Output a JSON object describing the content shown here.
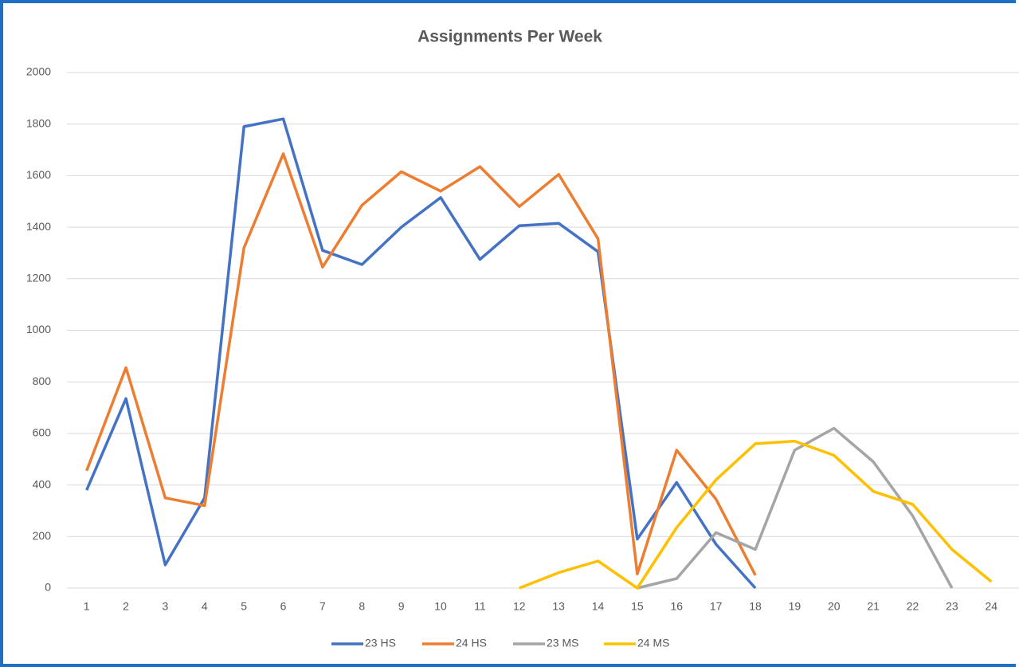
{
  "chart_data": {
    "type": "line",
    "title": "Assignments Per Week",
    "categories": [
      "1",
      "2",
      "3",
      "4",
      "5",
      "6",
      "7",
      "8",
      "9",
      "10",
      "11",
      "12",
      "13",
      "14",
      "15",
      "16",
      "17",
      "18",
      "19",
      "20",
      "21",
      "22",
      "23",
      "24"
    ],
    "series": [
      {
        "name": "23 HS",
        "color": "#4472c4",
        "values": [
          380,
          735,
          90,
          350,
          1790,
          1820,
          1310,
          1255,
          1400,
          1515,
          1275,
          1406,
          1415,
          1305,
          190,
          410,
          170,
          0,
          null,
          null,
          null,
          null,
          null,
          null
        ]
      },
      {
        "name": "24 HS",
        "color": "#ed7d31",
        "values": [
          455,
          855,
          350,
          320,
          1320,
          1685,
          1245,
          1485,
          1615,
          1540,
          1635,
          1480,
          1605,
          1355,
          55,
          535,
          345,
          50,
          null,
          null,
          null,
          null,
          null,
          null
        ]
      },
      {
        "name": "23 MS",
        "color": "#a5a5a5",
        "values": [
          null,
          null,
          null,
          null,
          null,
          null,
          null,
          null,
          null,
          null,
          null,
          null,
          null,
          null,
          0,
          37,
          215,
          150,
          535,
          620,
          490,
          280,
          0,
          null
        ]
      },
      {
        "name": "24 MS",
        "color": "#ffc000",
        "values": [
          null,
          null,
          null,
          null,
          null,
          null,
          null,
          null,
          null,
          null,
          null,
          0,
          60,
          105,
          0,
          235,
          420,
          560,
          570,
          515,
          375,
          325,
          150,
          25
        ]
      }
    ],
    "ylim": [
      0,
      2000
    ],
    "yticks": [
      0,
      200,
      400,
      600,
      800,
      1000,
      1200,
      1400,
      1600,
      1800,
      2000
    ],
    "grid": true,
    "legend": "bottom"
  }
}
